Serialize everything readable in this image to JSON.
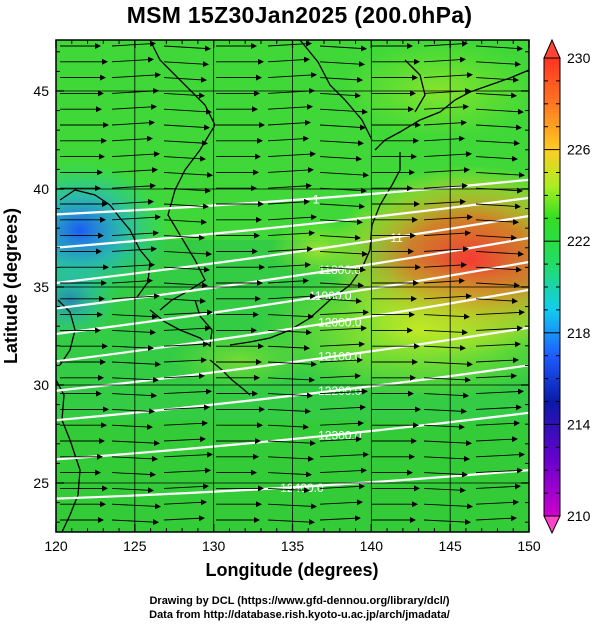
{
  "title": "MSM 15Z30Jan2025 (200.0hPa)",
  "map": {
    "x_axis": {
      "label": "Longitude (degrees)",
      "min": 120,
      "max": 150,
      "ticks": [
        "120",
        "125",
        "130",
        "135",
        "140",
        "145",
        "150"
      ]
    },
    "y_axis": {
      "label": "Latitude  (degrees)",
      "min": 22.5,
      "max": 47.6,
      "ticks": [
        "25",
        "30",
        "35",
        "40",
        "45"
      ]
    },
    "variable_colorbar": {
      "min": 210,
      "max": 230,
      "tick_labels": [
        "230",
        "226",
        "222",
        "218",
        "214",
        "210"
      ]
    },
    "height_contours": [
      {
        "label": "1"
      },
      {
        "label": ""
      },
      {
        "label": "11"
      },
      {
        "label": "11800.0"
      },
      {
        "label": "11900.0"
      },
      {
        "label": "12000.0"
      },
      {
        "label": "12100.0"
      },
      {
        "label": "12200.0"
      },
      {
        "label": "12300.0"
      },
      {
        "label": "12400.0"
      }
    ],
    "colors": {
      "background_mid": "#33dd33",
      "warm": "#ff3333",
      "cool": "#2266ff",
      "contour": "#ffffff",
      "vector": "#000000"
    }
  },
  "credits": {
    "line1": "Drawing by DCL (https://www.gfd-dennou.org/library/dcl/)",
    "line2": "Data from http://database.rish.kyoto-u.ac.jp/arch/jmadata/"
  }
}
